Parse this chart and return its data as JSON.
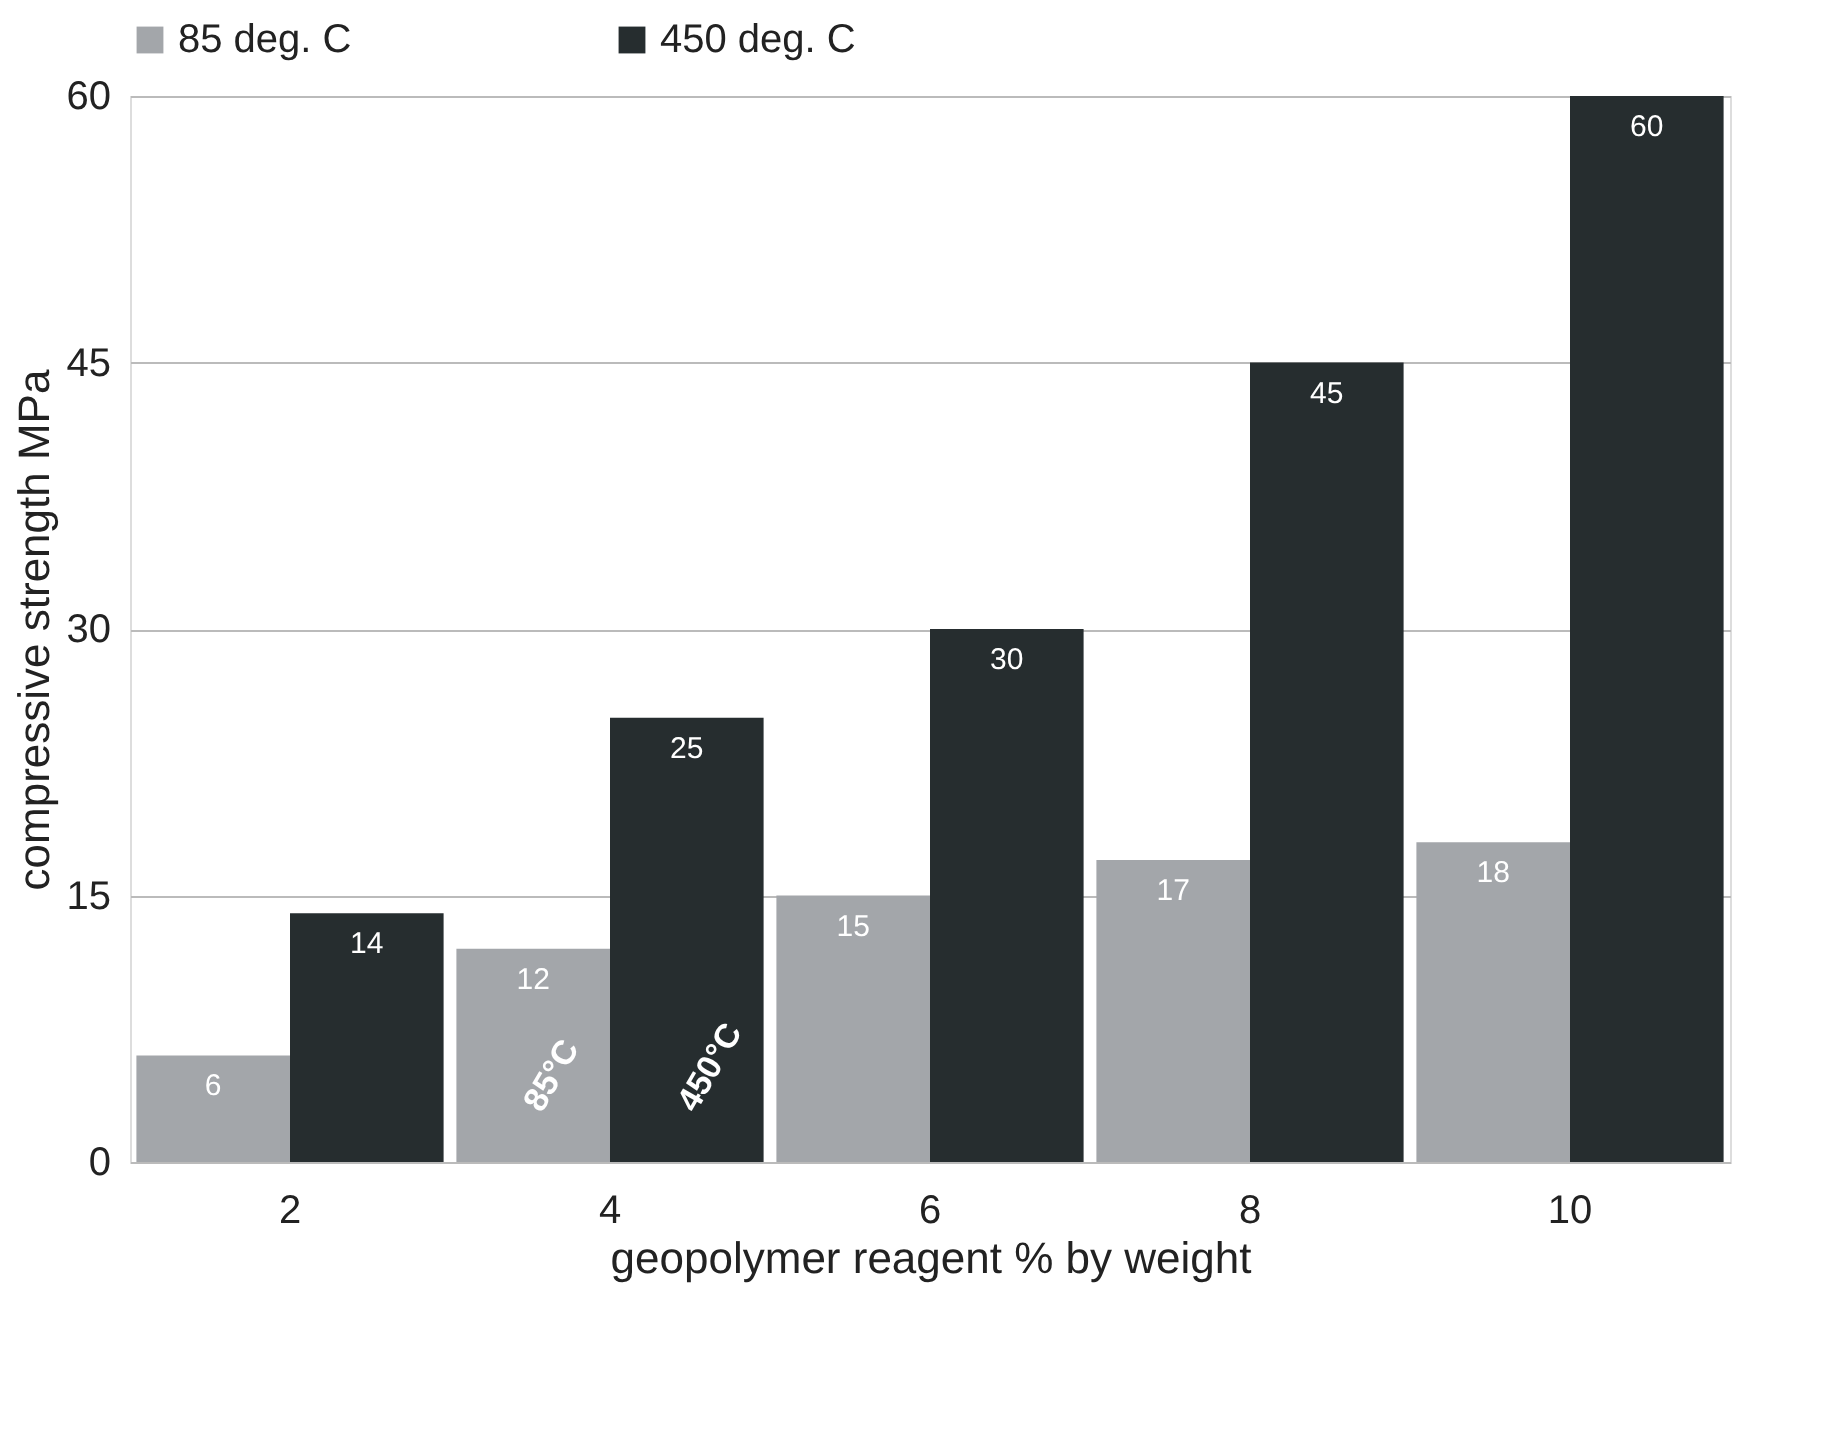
{
  "chart_data": {
    "type": "bar",
    "xlabel": "geopolymer reagent % by weight",
    "ylabel": "compressive strength MPa",
    "categories": [
      "2",
      "4",
      "6",
      "8",
      "10"
    ],
    "series": [
      {
        "name": "85 deg. C",
        "color": "#a3a6aa",
        "values": [
          6,
          12,
          15,
          17,
          18
        ]
      },
      {
        "name": "450 deg. C",
        "color": "#262d2f",
        "values": [
          14,
          25,
          30,
          45,
          60
        ]
      }
    ],
    "ylim": [
      0,
      60
    ],
    "yticks": [
      0,
      15,
      30,
      45,
      60
    ],
    "grid": "y",
    "legend": "top",
    "data_labels": true,
    "annotations": [
      {
        "text": "85°C",
        "x": "4",
        "y": 3
      },
      {
        "text": "450°C",
        "x": "4",
        "y": 3
      }
    ]
  }
}
